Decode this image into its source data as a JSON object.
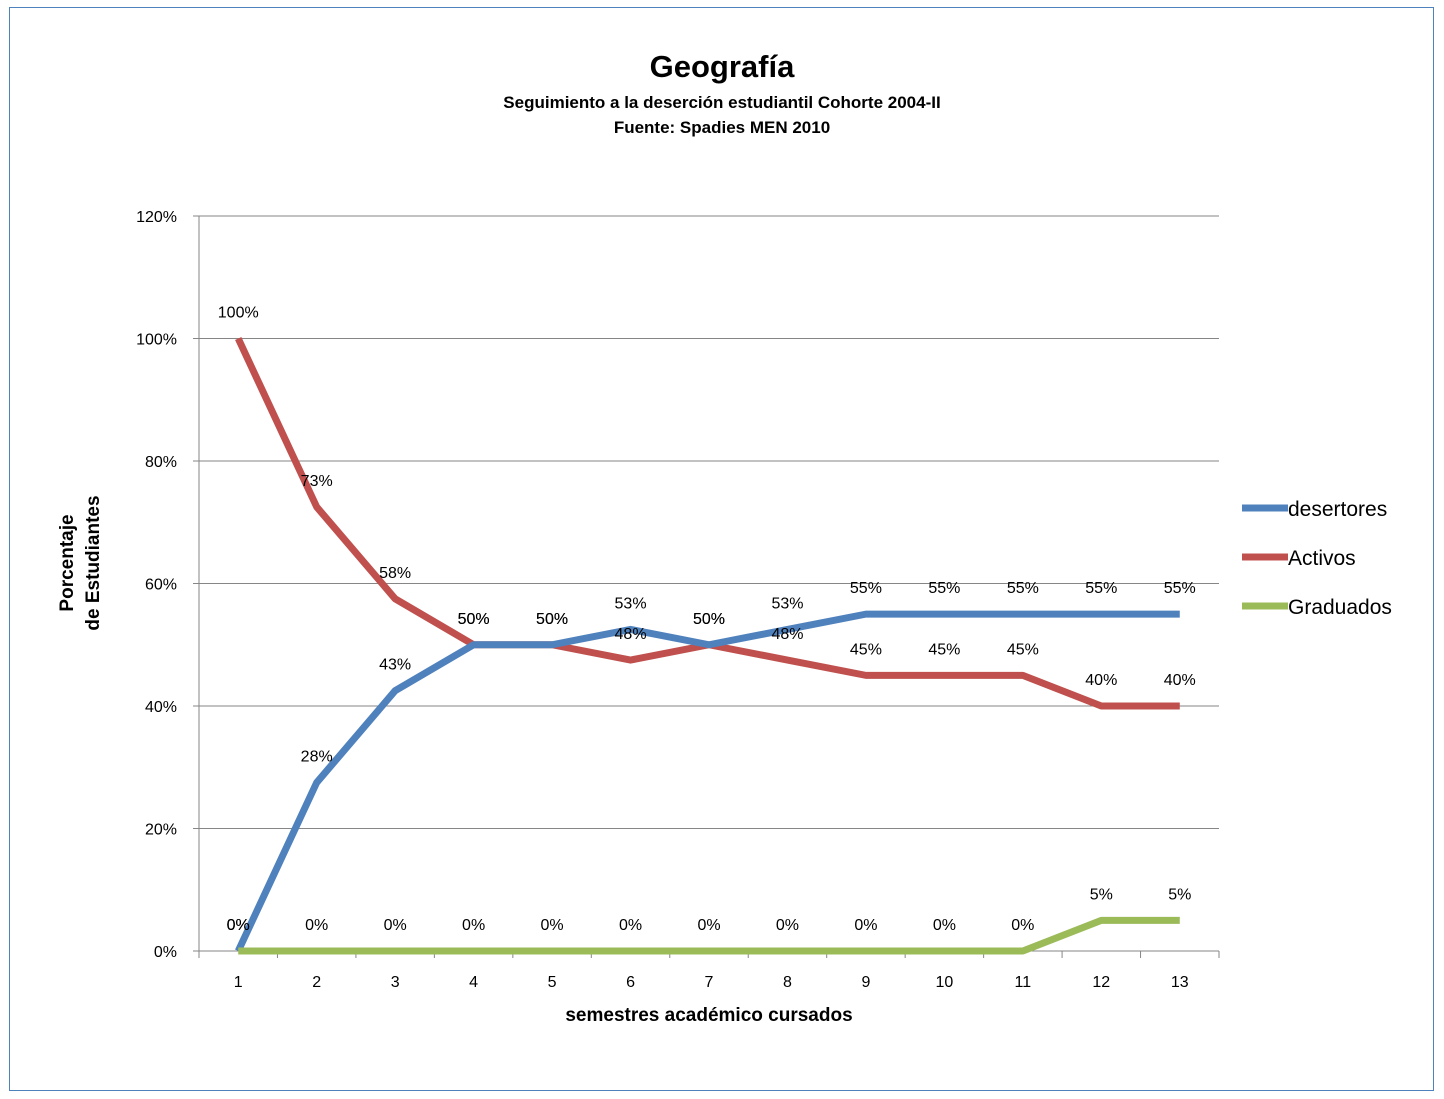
{
  "chart_data": {
    "type": "line",
    "title": "Geografía",
    "subtitle_lines": [
      "Seguimiento a la deserción estudiantil Cohorte 2004-II",
      "Fuente: Spadies MEN 2010"
    ],
    "xlabel": "semestres  académico cursados",
    "ylabel_lines": [
      "Porcentaje",
      "de Estudiantes"
    ],
    "categories": [
      "1",
      "2",
      "3",
      "4",
      "5",
      "6",
      "7",
      "8",
      "9",
      "10",
      "11",
      "12",
      "13"
    ],
    "ylim": [
      0,
      1.2
    ],
    "yticks": [
      0,
      0.2,
      0.4,
      0.6,
      0.8,
      1.0,
      1.2
    ],
    "ytick_labels": [
      "0%",
      "20%",
      "40%",
      "60%",
      "80%",
      "100%",
      "120%"
    ],
    "grid": true,
    "legend_position": "right",
    "series": [
      {
        "name": "desertores",
        "color": "#4f81bd",
        "values": [
          0,
          0.275,
          0.425,
          0.5,
          0.5,
          0.525,
          0.5,
          0.525,
          0.55,
          0.55,
          0.55,
          0.55,
          0.55
        ],
        "labels": [
          "0%",
          "28%",
          "43%",
          "50%",
          "50%",
          "53%",
          "50%",
          "53%",
          "55%",
          "55%",
          "55%",
          "55%",
          "55%"
        ]
      },
      {
        "name": "Activos",
        "color": "#c0504d",
        "values": [
          1.0,
          0.725,
          0.575,
          0.5,
          0.5,
          0.475,
          0.5,
          0.475,
          0.45,
          0.45,
          0.45,
          0.4,
          0.4
        ],
        "labels": [
          "100%",
          "73%",
          "58%",
          "50%",
          "50%",
          "48%",
          "50%",
          "48%",
          "45%",
          "45%",
          "45%",
          "40%",
          "40%"
        ]
      },
      {
        "name": "Graduados",
        "color": "#9bbb59",
        "values": [
          0,
          0,
          0,
          0,
          0,
          0,
          0,
          0,
          0,
          0,
          0,
          0.05,
          0.05
        ],
        "labels": [
          "0%",
          "0%",
          "0%",
          "0%",
          "0%",
          "0%",
          "0%",
          "0%",
          "0%",
          "0%",
          "0%",
          "5%",
          "5%"
        ]
      }
    ]
  }
}
